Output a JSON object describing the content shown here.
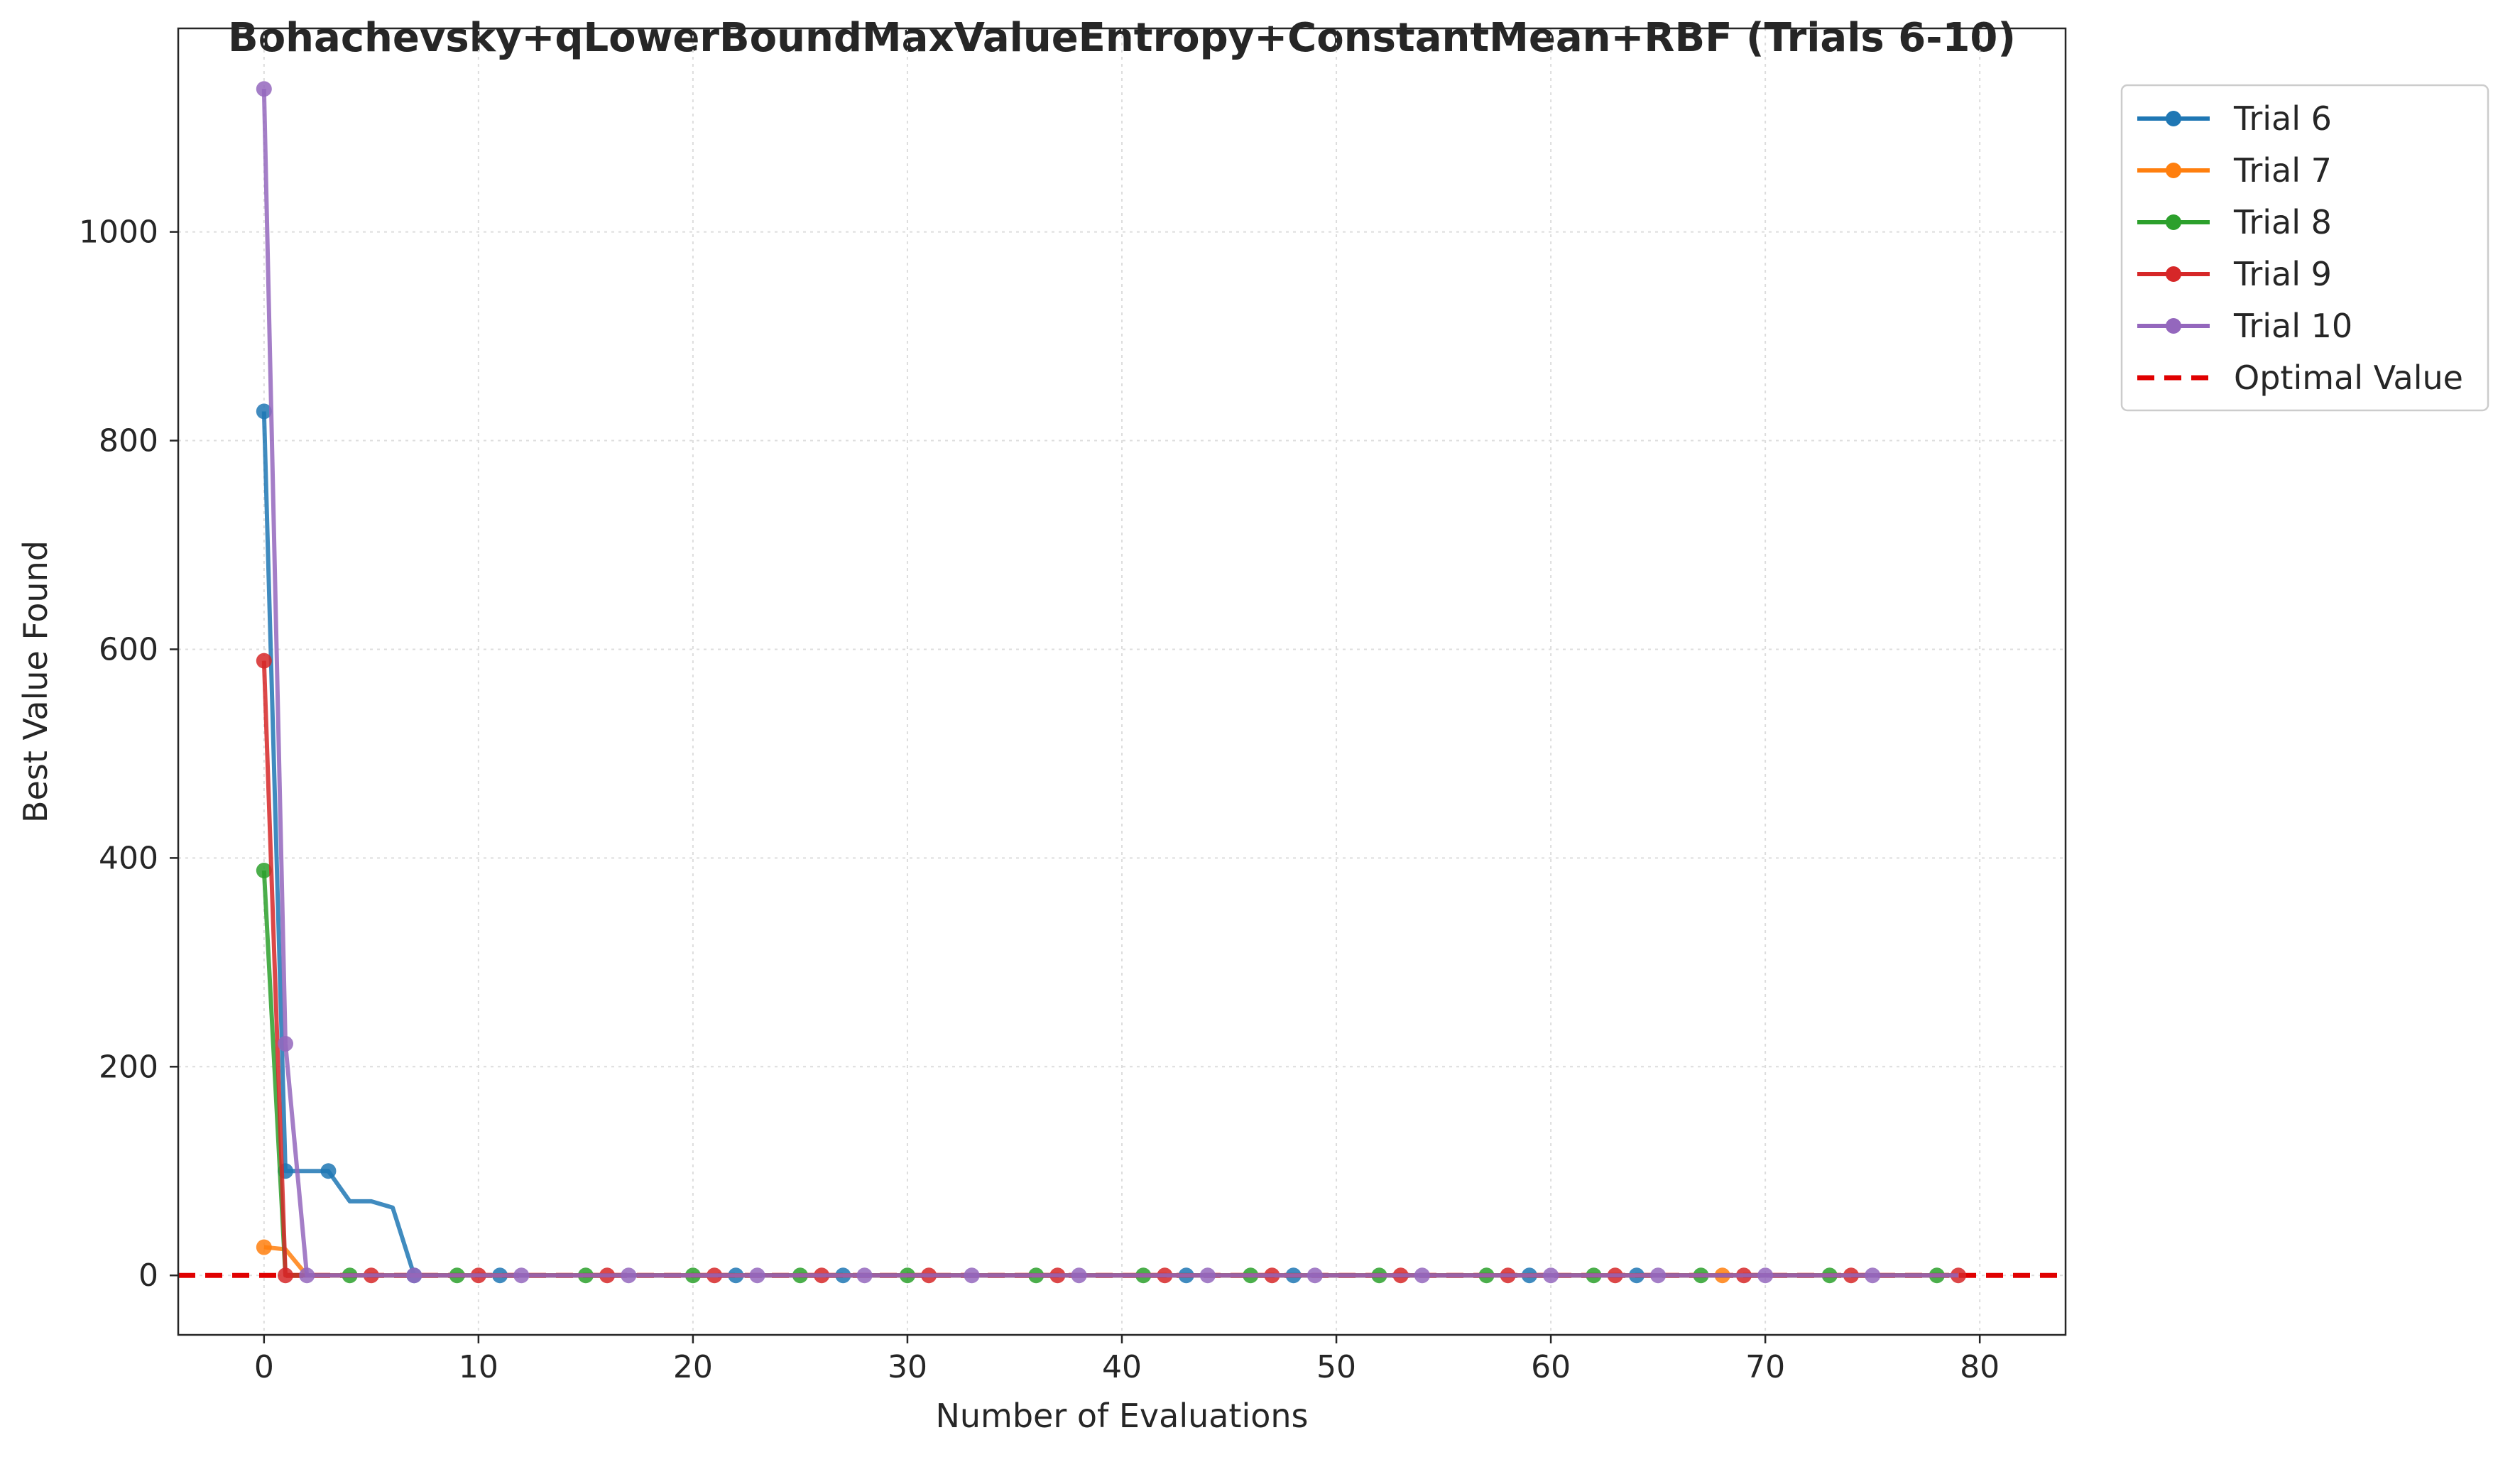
{
  "chart_data": {
    "type": "line",
    "title": "Bohachevsky+qLowerBoundMaxValueEntropy+ConstantMean+RBF (Trials 6-10)",
    "xlabel": "Number of Evaluations",
    "ylabel": "Best Value Found",
    "xlim": [
      -4,
      84
    ],
    "ylim": [
      -57,
      1195
    ],
    "xticks": [
      0,
      10,
      20,
      30,
      40,
      50,
      60,
      70,
      80
    ],
    "yticks": [
      0,
      200,
      400,
      600,
      800,
      1000
    ],
    "xtick_labels": [
      "0",
      "10",
      "20",
      "30",
      "40",
      "50",
      "60",
      "70",
      "80"
    ],
    "ytick_labels": [
      "0",
      "200",
      "400",
      "600",
      "800",
      "1000"
    ],
    "grid": true,
    "legend_position": "outside-top-right",
    "series": [
      {
        "name": "Trial 6",
        "color": "#1f77b4",
        "x": [
          0,
          1,
          2,
          3,
          4,
          5,
          6,
          7,
          8,
          11,
          22,
          27,
          43,
          48,
          59,
          64,
          79
        ],
        "y": [
          828,
          100,
          100,
          100,
          71,
          71,
          65,
          0,
          0,
          0,
          0,
          0,
          0,
          0,
          0,
          0,
          0
        ],
        "markers": [
          0,
          1,
          3,
          7,
          11,
          22,
          27,
          43,
          48,
          59,
          64
        ]
      },
      {
        "name": "Trial 7",
        "color": "#ff7f0e",
        "x": [
          0,
          1,
          2,
          68,
          79
        ],
        "y": [
          27,
          25,
          0,
          0,
          0
        ],
        "markers": [
          0,
          68
        ]
      },
      {
        "name": "Trial 8",
        "color": "#2ca02c",
        "x": [
          0,
          1,
          4,
          9,
          15,
          20,
          25,
          30,
          36,
          41,
          46,
          52,
          57,
          62,
          67,
          73,
          78,
          79
        ],
        "y": [
          388,
          0,
          0,
          0,
          0,
          0,
          0,
          0,
          0,
          0,
          0,
          0,
          0,
          0,
          0,
          0,
          0,
          0
        ],
        "markers": [
          0,
          4,
          9,
          15,
          20,
          25,
          30,
          36,
          41,
          46,
          52,
          57,
          62,
          67,
          73,
          78
        ]
      },
      {
        "name": "Trial 9",
        "color": "#d62728",
        "x": [
          0,
          1,
          5,
          10,
          16,
          21,
          26,
          31,
          37,
          42,
          47,
          53,
          58,
          63,
          69,
          74,
          79
        ],
        "y": [
          589,
          0,
          0,
          0,
          0,
          0,
          0,
          0,
          0,
          0,
          0,
          0,
          0,
          0,
          0,
          0,
          0
        ],
        "markers": [
          0,
          1,
          5,
          10,
          16,
          21,
          26,
          31,
          37,
          42,
          47,
          53,
          58,
          63,
          69,
          74,
          79
        ]
      },
      {
        "name": "Trial 10",
        "color": "#9467bd",
        "x": [
          0,
          1,
          2,
          7,
          12,
          17,
          23,
          28,
          33,
          38,
          44,
          49,
          54,
          60,
          65,
          70,
          75,
          79
        ],
        "y": [
          1137,
          222,
          0,
          0,
          0,
          0,
          0,
          0,
          0,
          0,
          0,
          0,
          0,
          0,
          0,
          0,
          0,
          0
        ],
        "markers": [
          0,
          1,
          2,
          7,
          12,
          17,
          23,
          28,
          33,
          38,
          44,
          49,
          54,
          60,
          65,
          70,
          75
        ]
      }
    ],
    "reference_line": {
      "name": "Optimal Value",
      "y": 0,
      "color": "#e00000",
      "style": "dashed"
    }
  }
}
